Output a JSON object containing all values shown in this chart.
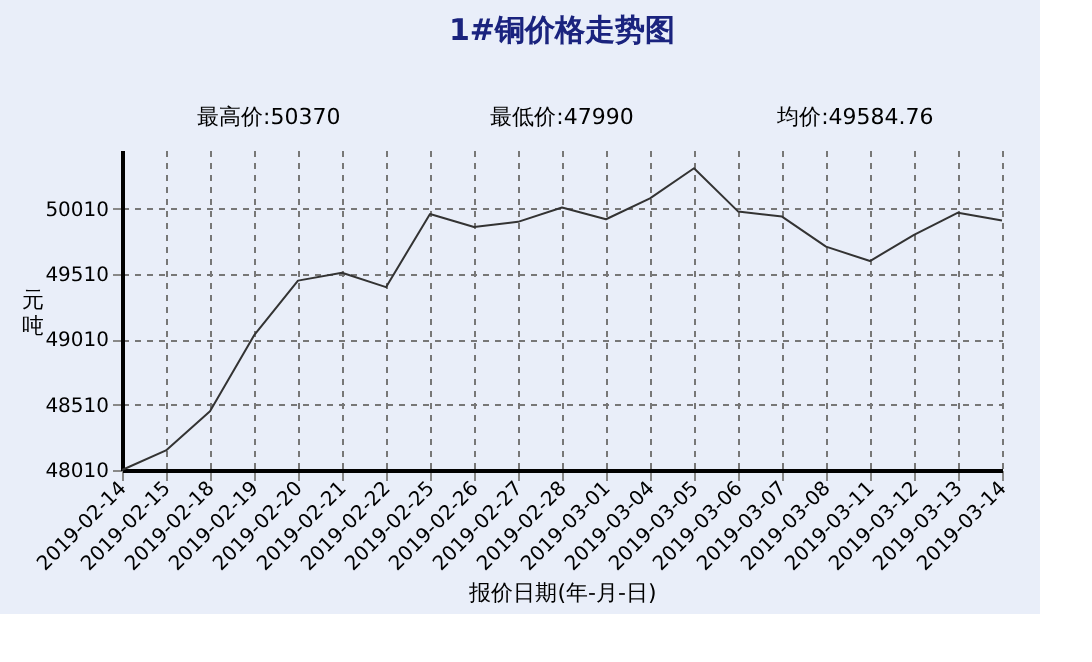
{
  "chart_data": {
    "type": "line",
    "title": "1#铜价格走势图",
    "xlabel": "报价日期(年-月-日)",
    "ylabel": "元吨",
    "categories": [
      "2019-02-14",
      "2019-02-15",
      "2019-02-18",
      "2019-02-19",
      "2019-02-20",
      "2019-02-21",
      "2019-02-22",
      "2019-02-25",
      "2019-02-26",
      "2019-02-27",
      "2019-02-28",
      "2019-03-01",
      "2019-03-04",
      "2019-03-05",
      "2019-03-06",
      "2019-03-07",
      "2019-03-08",
      "2019-03-11",
      "2019-03-12",
      "2019-03-13",
      "2019-03-14"
    ],
    "series": [
      {
        "color": "#333333",
        "values": [
          48010,
          48160,
          48460,
          49040,
          49460,
          49520,
          49410,
          49970,
          49870,
          49910,
          50020,
          49930,
          50090,
          50320,
          49990,
          49950,
          49720,
          49610,
          49810,
          49980,
          49920
        ]
      }
    ],
    "annotations": [
      "最高价:50370",
      "最低价:47990",
      "均价:49584.76"
    ],
    "ylim": [
      48010,
      50460
    ],
    "yticks": [
      48010,
      48510,
      49010,
      49510,
      50010
    ],
    "grid": true,
    "marker": "none",
    "line_style": "solid"
  }
}
